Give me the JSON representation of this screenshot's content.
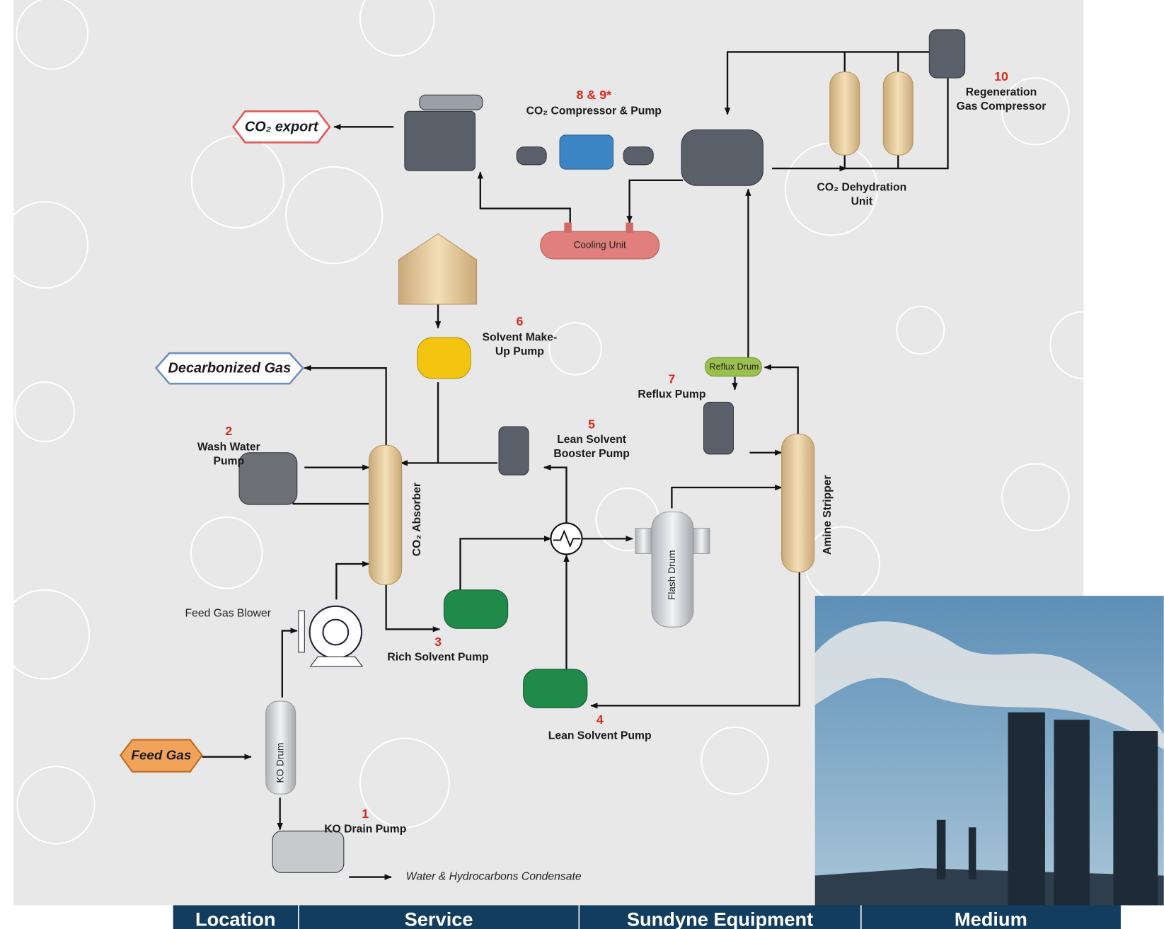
{
  "streams": {
    "co2_export": "CO₂ export",
    "decarbonized_gas": "Decarbonized Gas",
    "feed_gas": "Feed Gas",
    "condensate": "Water & Hydrocarbons Condensate"
  },
  "equipment": {
    "cooling_unit": "Cooling Unit",
    "reflux_drum": "Reflux Drum",
    "ko_drum": "KO Drum",
    "flash_drum": "Flash Drum",
    "co2_absorber": "CO₂ Absorber",
    "amine_stripper": "Amine Stripper",
    "dehydration": [
      "CO₂ Dehydration",
      "Unit"
    ],
    "feed_gas_blower": "Feed Gas Blower"
  },
  "nodes": [
    {
      "tag": "1",
      "lines": [
        "KO Drain Pump"
      ]
    },
    {
      "tag": "2",
      "lines": [
        "Wash Water",
        "Pump"
      ]
    },
    {
      "tag": "3",
      "lines": [
        "Rich Solvent Pump"
      ]
    },
    {
      "tag": "4",
      "lines": [
        "Lean Solvent Pump"
      ]
    },
    {
      "tag": "5",
      "lines": [
        "Lean Solvent",
        "Booster Pump"
      ]
    },
    {
      "tag": "6",
      "lines": [
        "Solvent Make-",
        "Up Pump"
      ]
    },
    {
      "tag": "7",
      "lines": [
        "Reflux Pump"
      ]
    },
    {
      "tag": "8 & 9*",
      "lines": [
        "CO₂ Compressor & Pump"
      ]
    },
    {
      "tag": "10",
      "lines": [
        "Regeneration",
        "Gas Compressor"
      ]
    }
  ],
  "table": {
    "header": [
      "Location",
      "Service",
      "Sundyne Equipment",
      "Medium"
    ]
  }
}
